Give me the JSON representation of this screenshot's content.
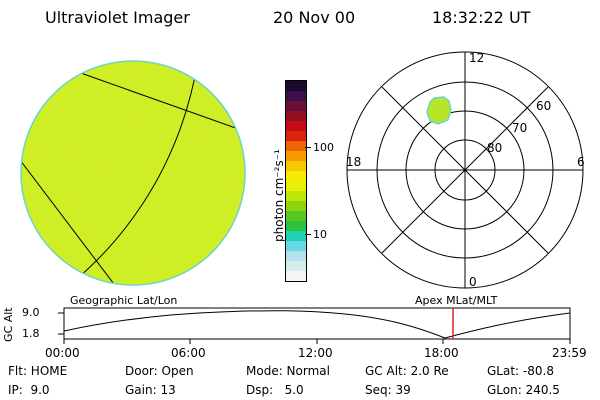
{
  "header": {
    "title": "Ultraviolet Imager",
    "date": "20 Nov 00",
    "time": "18:32:22 UT"
  },
  "colorbar": {
    "label": "photon cm⁻²s⁻¹",
    "ticks": [
      "100",
      "10"
    ],
    "colors": [
      "#f5f5f5",
      "#d4ecea",
      "#b3e2ec",
      "#65d9e8",
      "#1fcfb6",
      "#2cc23c",
      "#57c621",
      "#8dd40e",
      "#c1e40a",
      "#e8f008",
      "#f9ea06",
      "#f8c703",
      "#f59c02",
      "#ee6305",
      "#dd220b",
      "#c30d15",
      "#931022",
      "#6a1036",
      "#3d104c",
      "#1a0a2c"
    ]
  },
  "polar": {
    "mlt_labels": [
      "12",
      "18",
      "6",
      "0"
    ],
    "mlat_labels": [
      "60",
      "70",
      "80"
    ]
  },
  "timeline": {
    "left_label": "Geographic Lat/Lon",
    "right_label": "Apex MLat/MLT",
    "axis_label": "GC Alt",
    "y_ticks": [
      "9.0",
      "1.8"
    ],
    "x_ticks": [
      "00:00",
      "06:00",
      "12:00",
      "18:00",
      "23:59"
    ],
    "marker_color": "#e0202c"
  },
  "footer": {
    "row1": [
      "Flt: HOME",
      "Door: Open",
      "Mode: Normal",
      "GC Alt: 2.0 Re",
      "GLat: -80.8"
    ],
    "row2": [
      "IP:  9.0",
      "Gain: 13",
      "Dsp:   5.0",
      "Seq: 39",
      "GLon: 240.5"
    ]
  },
  "colors": {
    "disk_fill": "#d2ee1e",
    "disk_rim": "#6bd6c8",
    "aurora_fill": "#b6e52a"
  }
}
